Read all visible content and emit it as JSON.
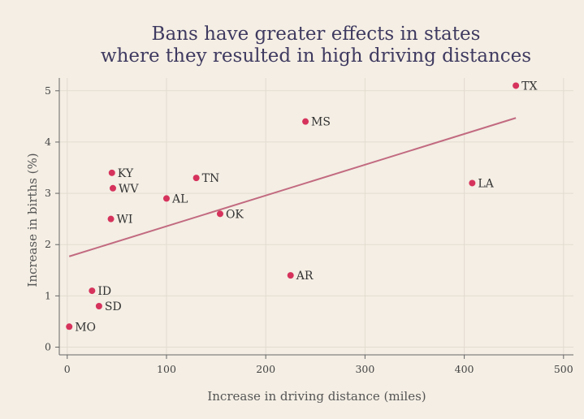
{
  "chart_data": {
    "type": "scatter",
    "title_lines": [
      "Bans have greater effects in states",
      "where they resulted in high driving distances"
    ],
    "xlabel": "Increase in driving distance (miles)",
    "ylabel": "Increase in births (%)",
    "xlim": [
      -8,
      510
    ],
    "ylim": [
      -0.15,
      5.25
    ],
    "xticks": [
      0,
      100,
      200,
      300,
      400,
      500
    ],
    "yticks": [
      0,
      1,
      2,
      3,
      4,
      5
    ],
    "grid": true,
    "points": [
      {
        "label": "TX",
        "x": 452,
        "y": 5.1
      },
      {
        "label": "MS",
        "x": 240,
        "y": 4.4
      },
      {
        "label": "KY",
        "x": 45,
        "y": 3.4
      },
      {
        "label": "TN",
        "x": 130,
        "y": 3.3
      },
      {
        "label": "LA",
        "x": 408,
        "y": 3.2
      },
      {
        "label": "WV",
        "x": 46,
        "y": 3.1
      },
      {
        "label": "AL",
        "x": 100,
        "y": 2.9
      },
      {
        "label": "OK",
        "x": 154,
        "y": 2.6
      },
      {
        "label": "WI",
        "x": 44,
        "y": 2.5
      },
      {
        "label": "AR",
        "x": 225,
        "y": 1.4
      },
      {
        "label": "ID",
        "x": 25,
        "y": 1.1
      },
      {
        "label": "SD",
        "x": 32,
        "y": 0.8
      },
      {
        "label": "MO",
        "x": 2,
        "y": 0.4
      }
    ],
    "fit_line": {
      "x": [
        2,
        452
      ],
      "y": [
        1.77,
        4.47
      ]
    },
    "colors": {
      "point": "#d6335c",
      "fit_line": "#c26a80",
      "title": "#3f3a60",
      "background": "#f4eee4"
    }
  }
}
